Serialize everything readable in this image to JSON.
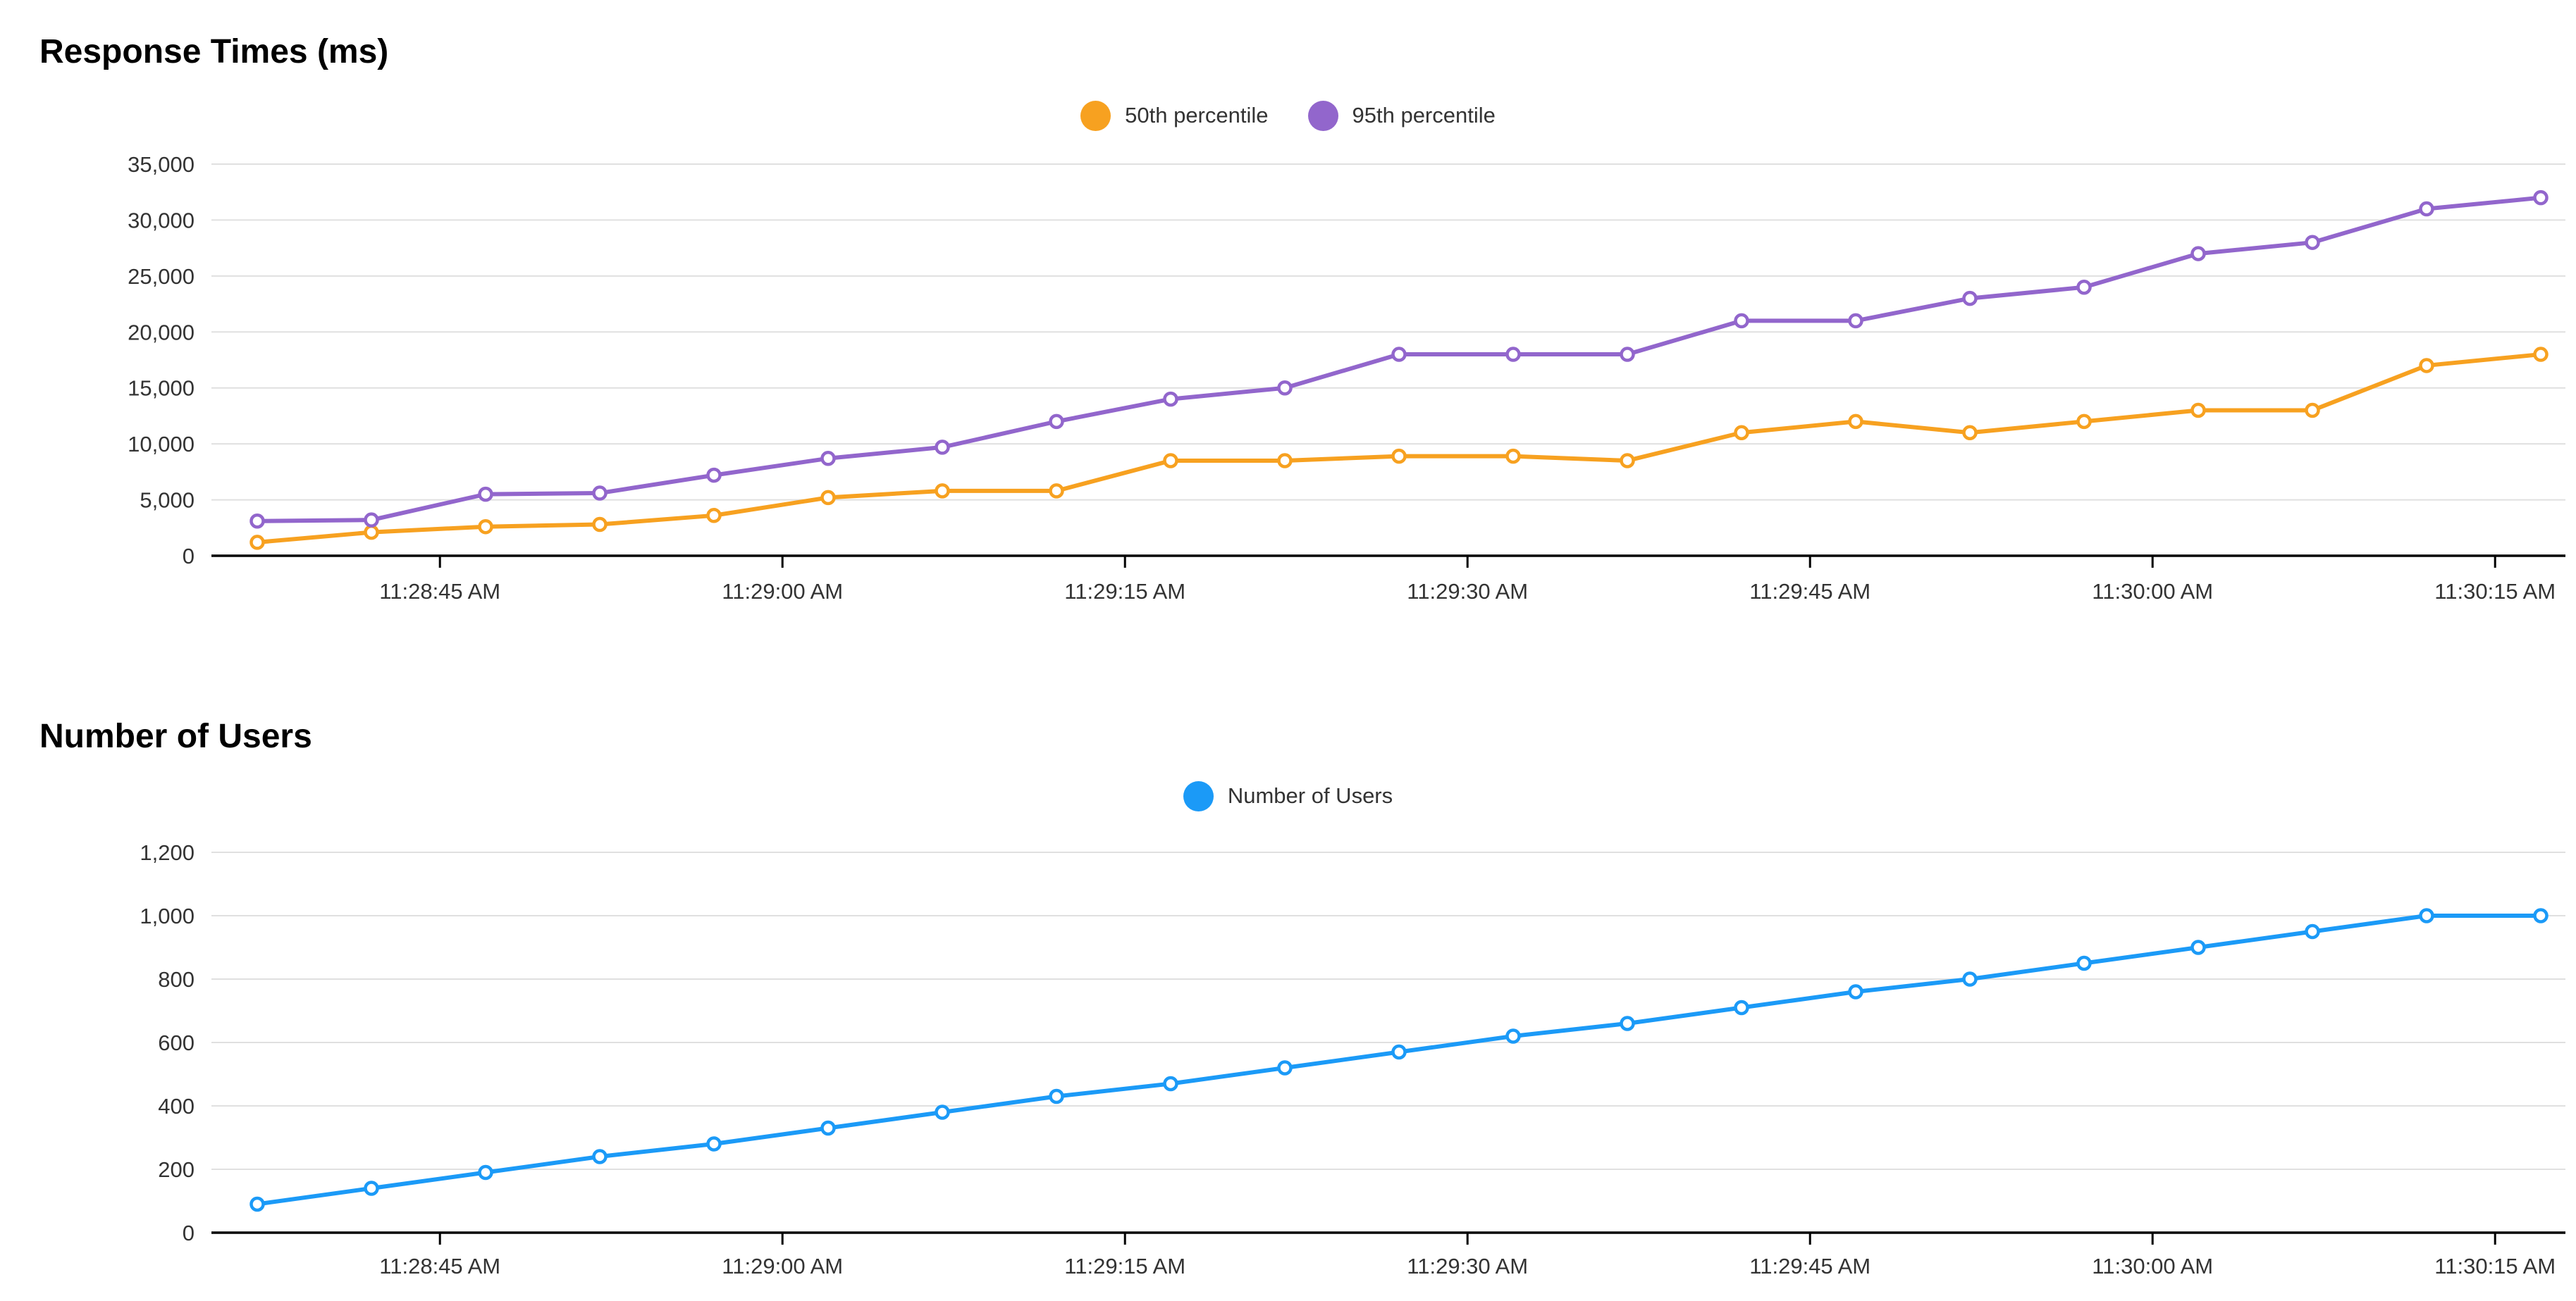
{
  "page_background": "#ffffff",
  "grid_color": "#e0e0e0",
  "axis_color": "#000000",
  "tick_label_color": "#333333",
  "chart_data": [
    {
      "type": "line",
      "title": "Response Times (ms)",
      "legend_position": "top-center",
      "grid": true,
      "xlabel": "",
      "ylabel": "",
      "ylim": [
        0,
        35000
      ],
      "y_ticks": [
        0,
        5000,
        10000,
        15000,
        20000,
        25000,
        30000,
        35000
      ],
      "x_tick_labels": [
        "11:28:45 AM",
        "11:29:00 AM",
        "11:29:15 AM",
        "11:29:30 AM",
        "11:29:45 AM",
        "11:30:00 AM",
        "11:30:15 AM"
      ],
      "x": [
        "11:28:37 AM",
        "11:28:42 AM",
        "11:28:47 AM",
        "11:28:52 AM",
        "11:28:57 AM",
        "11:29:02 AM",
        "11:29:07 AM",
        "11:29:12 AM",
        "11:29:17 AM",
        "11:29:22 AM",
        "11:29:27 AM",
        "11:29:32 AM",
        "11:29:37 AM",
        "11:29:42 AM",
        "11:29:47 AM",
        "11:29:52 AM",
        "11:29:57 AM",
        "11:30:02 AM",
        "11:30:07 AM",
        "11:30:12 AM",
        "11:30:17 AM"
      ],
      "series": [
        {
          "name": "50th percentile",
          "color": "#F7A120",
          "values": [
            1200,
            2100,
            2600,
            2800,
            3600,
            5200,
            5800,
            5800,
            8500,
            8500,
            8900,
            8900,
            8500,
            11000,
            12000,
            11000,
            12000,
            13000,
            13000,
            17000,
            18000
          ]
        },
        {
          "name": "95th percentile",
          "color": "#9266CC",
          "values": [
            3100,
            3200,
            5500,
            5600,
            7200,
            8700,
            9700,
            12000,
            14000,
            15000,
            18000,
            18000,
            18000,
            21000,
            21000,
            23000,
            24000,
            27000,
            28000,
            31000,
            32000
          ]
        }
      ]
    },
    {
      "type": "line",
      "title": "Number of Users",
      "legend_position": "top-center",
      "grid": true,
      "xlabel": "",
      "ylabel": "",
      "ylim": [
        0,
        1200
      ],
      "y_ticks": [
        0,
        200,
        400,
        600,
        800,
        1000,
        1200
      ],
      "x_tick_labels": [
        "11:28:45 AM",
        "11:29:00 AM",
        "11:29:15 AM",
        "11:29:30 AM",
        "11:29:45 AM",
        "11:30:00 AM",
        "11:30:15 AM"
      ],
      "x": [
        "11:28:37 AM",
        "11:28:42 AM",
        "11:28:47 AM",
        "11:28:52 AM",
        "11:28:57 AM",
        "11:29:02 AM",
        "11:29:07 AM",
        "11:29:12 AM",
        "11:29:17 AM",
        "11:29:22 AM",
        "11:29:27 AM",
        "11:29:32 AM",
        "11:29:37 AM",
        "11:29:42 AM",
        "11:29:47 AM",
        "11:29:52 AM",
        "11:29:57 AM",
        "11:30:02 AM",
        "11:30:07 AM",
        "11:30:12 AM",
        "11:30:17 AM"
      ],
      "series": [
        {
          "name": "Number of Users",
          "color": "#1B9AF7",
          "values": [
            90,
            140,
            190,
            240,
            280,
            330,
            380,
            430,
            470,
            520,
            570,
            620,
            660,
            710,
            760,
            800,
            850,
            900,
            950,
            1000,
            1000
          ]
        }
      ]
    }
  ]
}
